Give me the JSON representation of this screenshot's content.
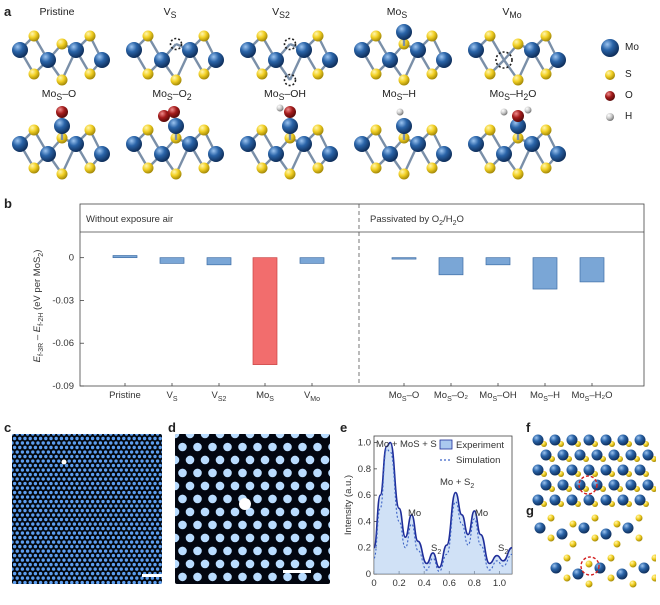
{
  "panel_labels": [
    "a",
    "b",
    "c",
    "d",
    "e",
    "f",
    "g"
  ],
  "panel_a": {
    "row1": [
      "Pristine",
      "V",
      "V",
      "Mo",
      "V"
    ],
    "row1_sub": [
      "",
      "S",
      "S2",
      "S",
      "Mo"
    ],
    "row2": [
      "Mo",
      "Mo",
      "Mo",
      "Mo",
      "Mo"
    ],
    "row2_sub": [
      "S",
      "S",
      "S",
      "S",
      "S"
    ],
    "row2_suffix": [
      "–O",
      "–O",
      "–OH",
      "–H",
      "–H"
    ],
    "row2_suffix_sub": [
      "",
      "2",
      "",
      "",
      "2"
    ],
    "row2_tail": [
      "",
      "",
      "",
      "",
      "O"
    ],
    "legend": [
      {
        "label": "Mo",
        "color": "#2a64a8"
      },
      {
        "label": "S",
        "color": "#f2d024"
      },
      {
        "label": "O",
        "color": "#a31b1b"
      },
      {
        "label": "H",
        "color": "#c8c8c8"
      }
    ]
  },
  "chart_data": {
    "type": "bar",
    "region_labels": {
      "left": "Without exposure air",
      "right_prefix": "Passivated by O",
      "right_sub1": "2",
      "right_mid": "/H",
      "right_sub2": "2",
      "right_suffix": "O"
    },
    "categories": [
      {
        "main": "Pristine",
        "sub": "",
        "tail": ""
      },
      {
        "main": "V",
        "sub": "S",
        "tail": ""
      },
      {
        "main": "V",
        "sub": "S2",
        "tail": ""
      },
      {
        "main": "Mo",
        "sub": "S",
        "tail": ""
      },
      {
        "main": "V",
        "sub": "Mo",
        "tail": ""
      },
      {
        "main": "Mo",
        "sub": "S",
        "tail": "–O"
      },
      {
        "main": "Mo",
        "sub": "S",
        "tail": "–O₂"
      },
      {
        "main": "Mo",
        "sub": "S",
        "tail": "–OH"
      },
      {
        "main": "Mo",
        "sub": "S",
        "tail": "–H"
      },
      {
        "main": "Mo",
        "sub": "S",
        "tail": "–H₂O"
      }
    ],
    "values": [
      0.0015,
      -0.004,
      -0.005,
      -0.075,
      -0.004,
      -0.001,
      -0.012,
      -0.005,
      -0.022,
      -0.017
    ],
    "highlight_index": 3,
    "bar_color": "#7aa6d6",
    "highlight_color": "#f26d6d",
    "ylim": [
      -0.09,
      0.018
    ],
    "yticks": [
      0,
      -0.03,
      -0.06,
      -0.09
    ],
    "ytick_labels": [
      "0",
      "-0.03",
      "-0.06",
      "-0.09"
    ],
    "ylabel": "E_f-3R – E_f-2H (eV per MoS₂)"
  },
  "panel_e": {
    "legend": [
      "Experiment",
      "Simulation"
    ],
    "ylabel": "Intensity (a.u.)",
    "xticks": [
      "0",
      "0.2",
      "0.4",
      "0.6",
      "0.8",
      "1.0"
    ],
    "yticks": [
      "0",
      "0.2",
      "0.4",
      "0.6",
      "0.8",
      "1.0"
    ],
    "annotations": [
      "Mo + MoS + S",
      "Mo",
      "S",
      "Mo + S",
      "Mo",
      "S"
    ],
    "annotation_subs": [
      "",
      "",
      "2",
      "2",
      "",
      "2"
    ],
    "chart_data": {
      "type": "line",
      "x": [
        0,
        0.05,
        0.1,
        0.13,
        0.2,
        0.25,
        0.3,
        0.35,
        0.42,
        0.47,
        0.52,
        0.58,
        0.65,
        0.7,
        0.75,
        0.8,
        0.85,
        0.92,
        0.98,
        1.03,
        1.1
      ],
      "experiment": [
        0.2,
        0.6,
        0.97,
        1.0,
        0.5,
        0.28,
        0.45,
        0.25,
        0.08,
        0.16,
        0.05,
        0.22,
        0.62,
        0.45,
        0.3,
        0.48,
        0.3,
        0.08,
        0.14,
        0.1,
        0.2
      ],
      "simulation": [
        0.12,
        0.5,
        0.95,
        0.93,
        0.4,
        0.2,
        0.38,
        0.18,
        0.03,
        0.12,
        0.02,
        0.15,
        0.55,
        0.38,
        0.22,
        0.42,
        0.22,
        0.03,
        0.1,
        0.06,
        0.15
      ],
      "xlim": [
        0,
        1.1
      ],
      "ylim": [
        0,
        1.05
      ]
    }
  },
  "colors": {
    "mo": "#2a64a8",
    "s": "#f2d024",
    "o": "#a31b1b",
    "h": "#c8c8c8",
    "dash": "#666666"
  }
}
